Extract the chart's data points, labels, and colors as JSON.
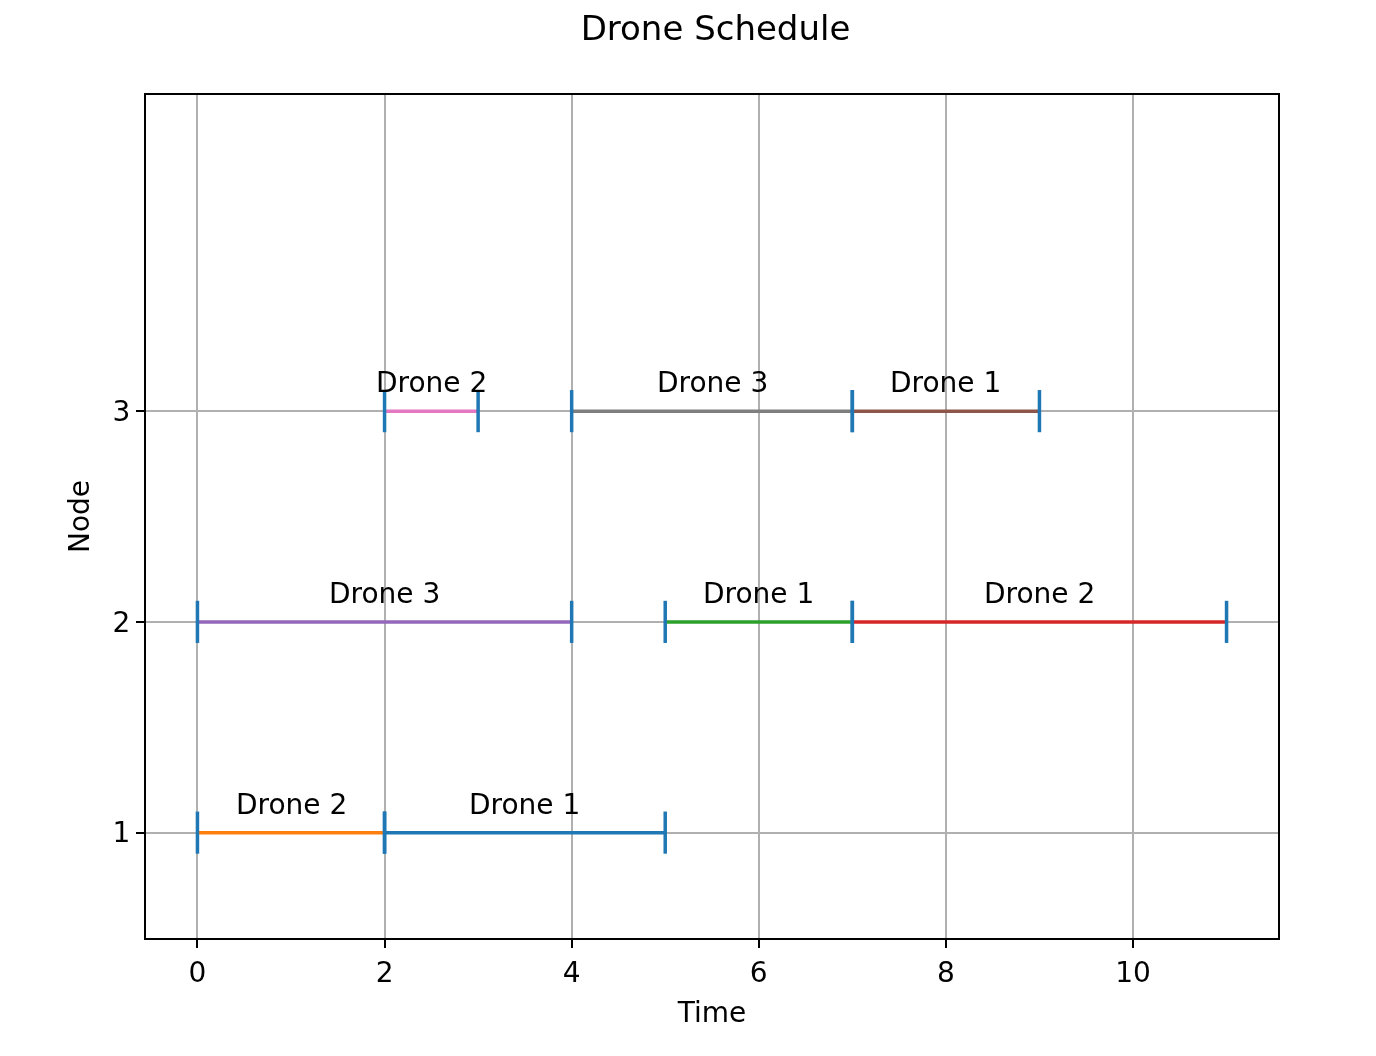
{
  "chart_data": {
    "type": "line",
    "title": "Drone Schedule",
    "xlabel": "Time",
    "ylabel": "Node",
    "xlim": [
      -0.55,
      11.55
    ],
    "xticks": [
      0,
      2,
      4,
      6,
      8,
      10
    ],
    "ylim": [
      0.5,
      4.5
    ],
    "yticks": [
      1,
      2,
      3
    ],
    "grid": true,
    "series": [
      {
        "color": "#1f77b4",
        "x": [
          2,
          5
        ],
        "values": [
          1,
          1
        ]
      },
      {
        "color": "#ff7f0e",
        "x": [
          0,
          2
        ],
        "values": [
          1,
          1
        ]
      },
      {
        "color": "#2ca02c",
        "x": [
          5,
          7
        ],
        "values": [
          2,
          2
        ]
      },
      {
        "color": "#d62728",
        "x": [
          7,
          11
        ],
        "values": [
          2,
          2
        ]
      },
      {
        "color": "#9467bd",
        "x": [
          0,
          4
        ],
        "values": [
          2,
          2
        ]
      },
      {
        "color": "#8c564b",
        "x": [
          7,
          9
        ],
        "values": [
          3,
          3
        ]
      },
      {
        "color": "#e377c2",
        "x": [
          2,
          3
        ],
        "values": [
          3,
          3
        ]
      },
      {
        "color": "#7f7f7f",
        "x": [
          4,
          7
        ],
        "values": [
          3,
          3
        ]
      },
      {
        "color": "#1f77b4",
        "x": [
          0,
          0
        ],
        "values": [
          0.9,
          1.1
        ]
      },
      {
        "color": "#1f77b4",
        "x": [
          2,
          2
        ],
        "values": [
          0.9,
          1.1
        ]
      },
      {
        "color": "#1f77b4",
        "x": [
          2,
          2
        ],
        "values": [
          0.9,
          1.1
        ]
      },
      {
        "color": "#1f77b4",
        "x": [
          5,
          5
        ],
        "values": [
          0.9,
          1.1
        ]
      },
      {
        "color": "#1f77b4",
        "x": [
          0,
          0
        ],
        "values": [
          1.9,
          2.1
        ]
      },
      {
        "color": "#1f77b4",
        "x": [
          4,
          4
        ],
        "values": [
          1.9,
          2.1
        ]
      },
      {
        "color": "#1f77b4",
        "x": [
          5,
          5
        ],
        "values": [
          1.9,
          2.1
        ]
      },
      {
        "color": "#1f77b4",
        "x": [
          7,
          7
        ],
        "values": [
          1.9,
          2.1
        ]
      },
      {
        "color": "#1f77b4",
        "x": [
          7,
          7
        ],
        "values": [
          1.9,
          2.1
        ]
      },
      {
        "color": "#1f77b4",
        "x": [
          11,
          11
        ],
        "values": [
          1.9,
          2.1
        ]
      },
      {
        "color": "#1f77b4",
        "x": [
          2,
          2
        ],
        "values": [
          2.9,
          3.1
        ]
      },
      {
        "color": "#1f77b4",
        "x": [
          3,
          3
        ],
        "values": [
          2.9,
          3.1
        ]
      },
      {
        "color": "#1f77b4",
        "x": [
          4,
          4
        ],
        "values": [
          2.9,
          3.1
        ]
      },
      {
        "color": "#1f77b4",
        "x": [
          7,
          7
        ],
        "values": [
          2.9,
          3.1
        ]
      },
      {
        "color": "#1f77b4",
        "x": [
          7,
          7
        ],
        "values": [
          2.9,
          3.1
        ]
      },
      {
        "color": "#1f77b4",
        "x": [
          9,
          9
        ],
        "values": [
          2.9,
          3.1
        ]
      }
    ],
    "annotations": [
      {
        "text": "Drone 2",
        "x": 1,
        "y": 1
      },
      {
        "text": "Drone 1",
        "x": 3.5,
        "y": 1
      },
      {
        "text": "Drone 3",
        "x": 2,
        "y": 2
      },
      {
        "text": "Drone 1",
        "x": 6,
        "y": 2
      },
      {
        "text": "Drone 2",
        "x": 9,
        "y": 2
      },
      {
        "text": "Drone 2",
        "x": 2.5,
        "y": 3
      },
      {
        "text": "Drone 3",
        "x": 5.5,
        "y": 3
      },
      {
        "text": "Drone 1",
        "x": 8,
        "y": 3
      }
    ]
  }
}
